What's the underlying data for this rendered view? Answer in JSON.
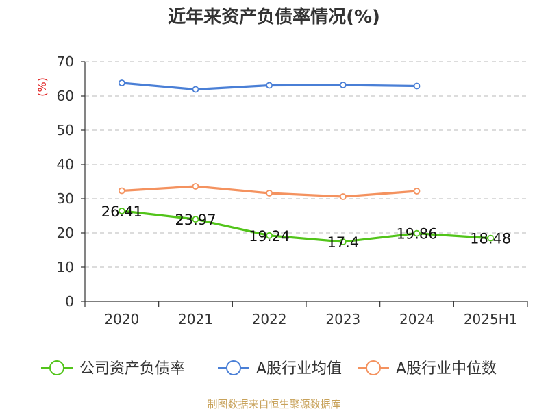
{
  "chart_data": {
    "type": "line",
    "title": "近年来资产负债率情况(%)",
    "ylabel": "(%)",
    "xlabel": "",
    "categories": [
      "2020",
      "2021",
      "2022",
      "2023",
      "2024",
      "2025H1"
    ],
    "ylim": [
      0,
      70
    ],
    "yticks": [
      0,
      10,
      20,
      30,
      40,
      50,
      60,
      70
    ],
    "grid": "horizontal-dashed",
    "legend_position": "bottom",
    "series": [
      {
        "name": "公司资产负债率",
        "color": "#52c41a",
        "values": [
          26.41,
          23.97,
          19.24,
          17.4,
          19.86,
          18.48
        ],
        "labels": [
          "26.41",
          "23.97",
          "19.24",
          "17.4",
          "19.86",
          "18.48"
        ]
      },
      {
        "name": "A股行业均值",
        "color": "#4a7fd6",
        "values": [
          63.8,
          61.9,
          63.1,
          63.2,
          62.9,
          null
        ]
      },
      {
        "name": "A股行业中位数",
        "color": "#f4925f",
        "values": [
          32.3,
          33.6,
          31.6,
          30.6,
          32.2,
          null
        ]
      }
    ],
    "source": "制图数据来自恒生聚源数据库"
  }
}
